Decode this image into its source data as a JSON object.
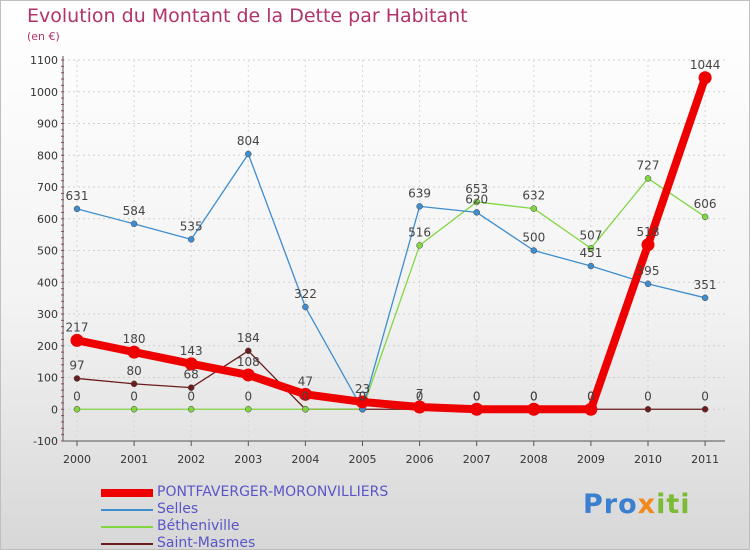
{
  "title": "Evolution du Montant de la Dette par Habitant",
  "subtitle": "(en €)",
  "logo": {
    "part1": "Pro",
    "part2": "x",
    "part3": "iti",
    "text": "Proxiti"
  },
  "chart_data": {
    "type": "line",
    "title": "Evolution du Montant de la Dette par Habitant",
    "ylabel": "(en €)",
    "xlabel": "",
    "ylim": [
      -100,
      1100
    ],
    "y_ticks": [
      -100,
      0,
      100,
      200,
      300,
      400,
      500,
      600,
      700,
      800,
      900,
      1000,
      1100
    ],
    "categories": [
      "2000",
      "2001",
      "2002",
      "2003",
      "2004",
      "2005",
      "2006",
      "2007",
      "2008",
      "2009",
      "2010",
      "2011"
    ],
    "grid": true,
    "legend": "bottom-left",
    "series": [
      {
        "name": "PONTFAVERGER-MORONVILLIERS",
        "color": "#ee0000",
        "emphasis": true,
        "values": [
          217,
          180,
          143,
          108,
          47,
          23,
          7,
          0,
          0,
          0,
          518,
          1044
        ],
        "labels": [
          "217",
          "180",
          "143",
          "108",
          "47",
          "23",
          "7",
          "0",
          "0",
          "0",
          "518",
          "1044"
        ]
      },
      {
        "name": "Selles",
        "color": "#3f8dcf",
        "values": [
          631,
          584,
          535,
          804,
          322,
          0,
          639,
          620,
          500,
          451,
          395,
          351
        ],
        "labels": [
          "631",
          "584",
          "535",
          "804",
          "322",
          "0",
          "639",
          "620",
          "500",
          "451",
          "395",
          "351"
        ]
      },
      {
        "name": "Bétheniville",
        "color": "#83d643",
        "values": [
          0,
          0,
          0,
          0,
          0,
          0,
          516,
          653,
          632,
          507,
          727,
          606
        ],
        "labels": [
          "0",
          "0",
          "0",
          "0",
          "",
          "0",
          "516",
          "653",
          "632",
          "507",
          "727",
          "606"
        ]
      },
      {
        "name": "Saint-Masmes",
        "color": "#6b1d1d",
        "values": [
          97,
          80,
          68,
          184,
          0,
          0,
          0,
          0,
          0,
          0,
          0,
          0
        ],
        "labels": [
          "97",
          "80",
          "68",
          "184",
          "0",
          "0",
          "0",
          "0",
          "0",
          "0",
          "0",
          "0"
        ]
      }
    ]
  }
}
